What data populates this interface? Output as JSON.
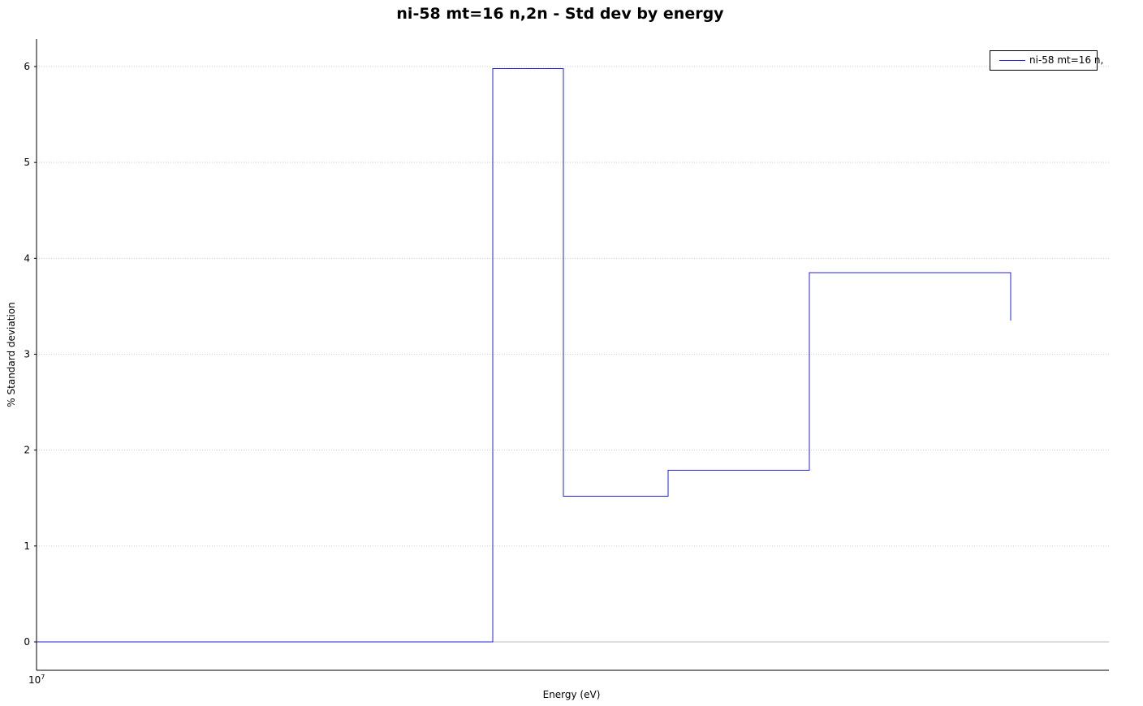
{
  "chart_data": {
    "type": "line",
    "step": true,
    "title": "ni-58 mt=16 n,2n - Std dev by energy",
    "xlabel": "Energy (eV)",
    "ylabel": "% Standard deviation",
    "x_tick_label": "10^7",
    "x_tick_base": "10",
    "x_tick_exp": "7",
    "yticks": [
      0,
      1,
      2,
      3,
      4,
      5,
      6
    ],
    "ylim": [
      -0.3,
      6.3
    ],
    "grid": true,
    "legend_position": "top-right",
    "series": [
      {
        "name": "ni-58 mt=16 n,",
        "color": "#2020e0",
        "steps": [
          0,
          0,
          5.98,
          1.52,
          1.79,
          3.85,
          3.35
        ]
      }
    ]
  }
}
